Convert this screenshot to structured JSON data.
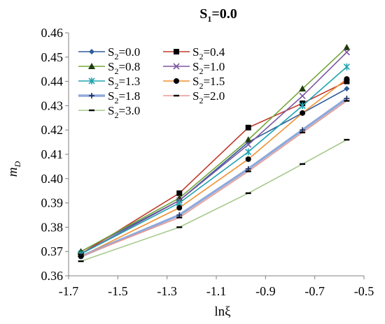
{
  "chart_data": {
    "type": "line",
    "title": "S1=0.0",
    "title_main": "S",
    "title_sub": "1",
    "title_rest": "=0.0",
    "xlabel": "lnξ",
    "ylabel": "mD",
    "ylabel_main": "m",
    "ylabel_sub": "D",
    "xlim": [
      -1.7,
      -0.5
    ],
    "ylim": [
      0.36,
      0.46
    ],
    "xticks": [
      -1.7,
      -1.5,
      -1.3,
      -1.1,
      -0.9,
      -0.7,
      -0.5
    ],
    "xtick_labels": [
      "-1.7",
      "-1.5",
      "-1.3",
      "-1.1",
      "-0.9",
      "-0.7",
      "-0.5"
    ],
    "yticks": [
      0.36,
      0.37,
      0.38,
      0.39,
      0.4,
      0.41,
      0.42,
      0.43,
      0.44,
      0.45,
      0.46
    ],
    "ytick_labels": [
      "0.36",
      "0.37",
      "0.38",
      "0.39",
      "0.40",
      "0.41",
      "0.42",
      "0.43",
      "0.44",
      "0.45",
      "0.46"
    ],
    "grid": false,
    "legend_position": "top-left",
    "x": [
      -1.65,
      -1.25,
      -0.97,
      -0.75,
      -0.57
    ],
    "series": [
      {
        "name": "S2=0.0",
        "name_main": "S",
        "name_sub": "2",
        "name_rest": "=0.0",
        "color": "#2E5C9A",
        "marker": "diamond",
        "values": [
          0.37,
          0.391,
          0.415,
          0.427,
          0.437
        ]
      },
      {
        "name": "S2=0.4",
        "name_main": "S",
        "name_sub": "2",
        "name_rest": "=0.4",
        "color": "#C0392B",
        "marker": "square",
        "values": [
          0.369,
          0.394,
          0.421,
          0.431,
          0.44
        ]
      },
      {
        "name": "S2=0.8",
        "name_main": "S",
        "name_sub": "2",
        "name_rest": "=0.8",
        "color": "#76A63C",
        "marker": "triangle",
        "values": [
          0.37,
          0.392,
          0.416,
          0.437,
          0.454
        ]
      },
      {
        "name": "S2=1.0",
        "name_main": "S",
        "name_sub": "2",
        "name_rest": "=1.0",
        "color": "#7B56A0",
        "marker": "x",
        "values": [
          0.369,
          0.391,
          0.414,
          0.434,
          0.452
        ]
      },
      {
        "name": "S2=1.3",
        "name_main": "S",
        "name_sub": "2",
        "name_rest": "=1.3",
        "color": "#1FA3B0",
        "marker": "star",
        "values": [
          0.369,
          0.39,
          0.411,
          0.43,
          0.446
        ]
      },
      {
        "name": "S2=1.5",
        "name_main": "S",
        "name_sub": "2",
        "name_rest": "=1.5",
        "color": "#F29130",
        "marker": "circle",
        "values": [
          0.368,
          0.388,
          0.408,
          0.427,
          0.441
        ]
      },
      {
        "name": "S2=1.8",
        "name_main": "S",
        "name_sub": "2",
        "name_rest": "=1.8",
        "color": "#8FA9DB",
        "marker": "plus",
        "values": [
          0.368,
          0.385,
          0.404,
          0.42,
          0.433
        ]
      },
      {
        "name": "S2=2.0",
        "name_main": "S",
        "name_sub": "2",
        "name_rest": "=2.0",
        "color": "#E89A94",
        "marker": "dash",
        "values": [
          0.368,
          0.384,
          0.403,
          0.419,
          0.432
        ]
      },
      {
        "name": "S2=3.0",
        "name_main": "S",
        "name_sub": "2",
        "name_rest": "=3.0",
        "color": "#A5C98A",
        "marker": "dash",
        "values": [
          0.366,
          0.38,
          0.394,
          0.406,
          0.416
        ]
      }
    ]
  }
}
